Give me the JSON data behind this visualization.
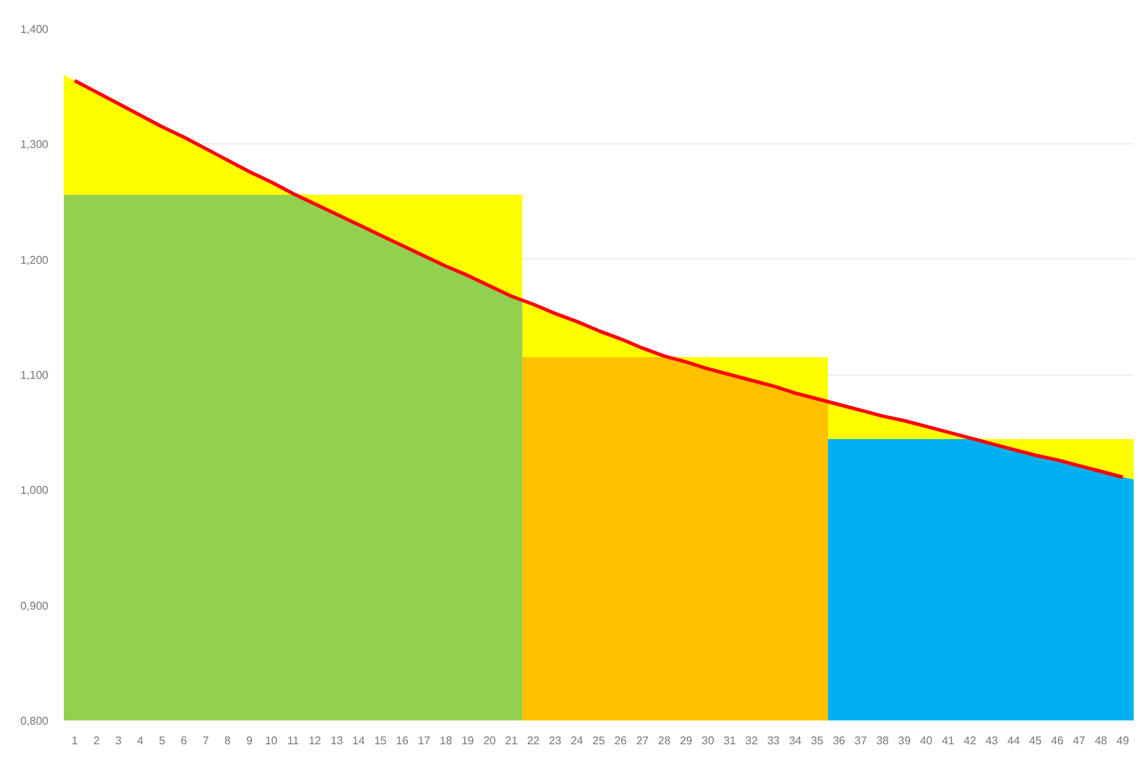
{
  "chart_data": {
    "type": "area",
    "x": [
      1,
      2,
      3,
      4,
      5,
      6,
      7,
      8,
      9,
      10,
      11,
      12,
      13,
      14,
      15,
      16,
      17,
      18,
      19,
      20,
      21,
      22,
      23,
      24,
      25,
      26,
      27,
      28,
      29,
      30,
      31,
      32,
      33,
      34,
      35,
      36,
      37,
      38,
      39,
      40,
      41,
      42,
      43,
      44,
      45,
      46,
      47,
      48,
      49
    ],
    "series": [
      {
        "color": "#ffff00",
        "x": [
          0.5,
          1,
          2,
          3,
          4,
          5,
          6,
          7,
          8,
          9,
          10,
          11,
          12,
          13,
          14,
          15,
          16,
          17,
          18,
          19,
          20,
          21,
          21.5,
          21.5,
          22,
          23,
          24,
          25,
          26,
          27,
          28,
          29,
          30,
          31,
          32,
          33,
          34,
          35,
          35.5,
          35.5,
          36,
          37,
          38,
          39,
          40,
          41,
          42,
          43,
          44,
          45,
          46,
          47,
          48,
          49,
          49.5
        ],
        "values": [
          1.36,
          1.355,
          1.345,
          1.335,
          1.325,
          1.315,
          1.306,
          1.296,
          1.286,
          1.276,
          1.267,
          1.257,
          1.256,
          1.256,
          1.256,
          1.256,
          1.256,
          1.256,
          1.256,
          1.256,
          1.256,
          1.256,
          1.256,
          1.164,
          1.161,
          1.153,
          1.146,
          1.138,
          1.131,
          1.123,
          1.116,
          1.115,
          1.115,
          1.115,
          1.115,
          1.115,
          1.115,
          1.115,
          1.115,
          1.077,
          1.074,
          1.069,
          1.064,
          1.06,
          1.055,
          1.05,
          1.045,
          1.044,
          1.044,
          1.044,
          1.044,
          1.044,
          1.044,
          1.044,
          1.044
        ]
      },
      {
        "color": "#92d050",
        "x": [
          0.5,
          1,
          2,
          3,
          4,
          5,
          6,
          7,
          8,
          9,
          10,
          11,
          12,
          13,
          14,
          15,
          16,
          17,
          18,
          19,
          20,
          21,
          21.5
        ],
        "values": [
          1.256,
          1.256,
          1.256,
          1.256,
          1.256,
          1.256,
          1.256,
          1.256,
          1.256,
          1.256,
          1.256,
          1.256,
          1.248,
          1.239,
          1.23,
          1.221,
          1.212,
          1.203,
          1.194,
          1.186,
          1.177,
          1.168,
          1.164
        ]
      },
      {
        "color": "#ffc000",
        "x": [
          21.5,
          22,
          23,
          24,
          25,
          26,
          27,
          28,
          29,
          30,
          31,
          32,
          33,
          34,
          35,
          35.5
        ],
        "values": [
          1.115,
          1.115,
          1.115,
          1.115,
          1.115,
          1.115,
          1.115,
          1.115,
          1.111,
          1.105,
          1.1,
          1.095,
          1.09,
          1.084,
          1.079,
          1.077
        ]
      },
      {
        "color": "#00b0f0",
        "x": [
          35.5,
          36,
          37,
          38,
          39,
          40,
          41,
          42,
          43,
          44,
          45,
          46,
          47,
          48,
          49,
          49.5
        ],
        "values": [
          1.044,
          1.044,
          1.044,
          1.044,
          1.044,
          1.044,
          1.044,
          1.044,
          1.04,
          1.035,
          1.03,
          1.026,
          1.021,
          1.016,
          1.011,
          1.009
        ]
      },
      {
        "type": "line",
        "color": "#ff0000",
        "values": [
          1.355,
          1.345,
          1.335,
          1.325,
          1.315,
          1.306,
          1.296,
          1.286,
          1.276,
          1.267,
          1.257,
          1.248,
          1.239,
          1.23,
          1.221,
          1.212,
          1.203,
          1.194,
          1.186,
          1.177,
          1.168,
          1.161,
          1.153,
          1.146,
          1.138,
          1.131,
          1.123,
          1.116,
          1.111,
          1.105,
          1.1,
          1.095,
          1.09,
          1.084,
          1.079,
          1.074,
          1.069,
          1.064,
          1.06,
          1.055,
          1.05,
          1.045,
          1.04,
          1.035,
          1.03,
          1.026,
          1.021,
          1.016,
          1.011
        ]
      }
    ],
    "xlim": [
      0.5,
      49.5
    ],
    "xticks": [
      1,
      2,
      3,
      4,
      5,
      6,
      7,
      8,
      9,
      10,
      11,
      12,
      13,
      14,
      15,
      16,
      17,
      18,
      19,
      20,
      21,
      22,
      23,
      24,
      25,
      26,
      27,
      28,
      29,
      30,
      31,
      32,
      33,
      34,
      35,
      36,
      37,
      38,
      39,
      40,
      41,
      42,
      43,
      44,
      45,
      46,
      47,
      48,
      49
    ],
    "ylim": [
      0.8,
      1.4
    ],
    "yticks": [
      {
        "value": 0.8,
        "label": "0,800"
      },
      {
        "value": 0.9,
        "label": "0,900"
      },
      {
        "value": 1.0,
        "label": "1,000"
      },
      {
        "value": 1.1,
        "label": "1,100"
      },
      {
        "value": 1.2,
        "label": "1,200"
      },
      {
        "value": 1.3,
        "label": "1,300"
      },
      {
        "value": 1.4,
        "label": "1,400"
      }
    ],
    "grid": "y"
  }
}
